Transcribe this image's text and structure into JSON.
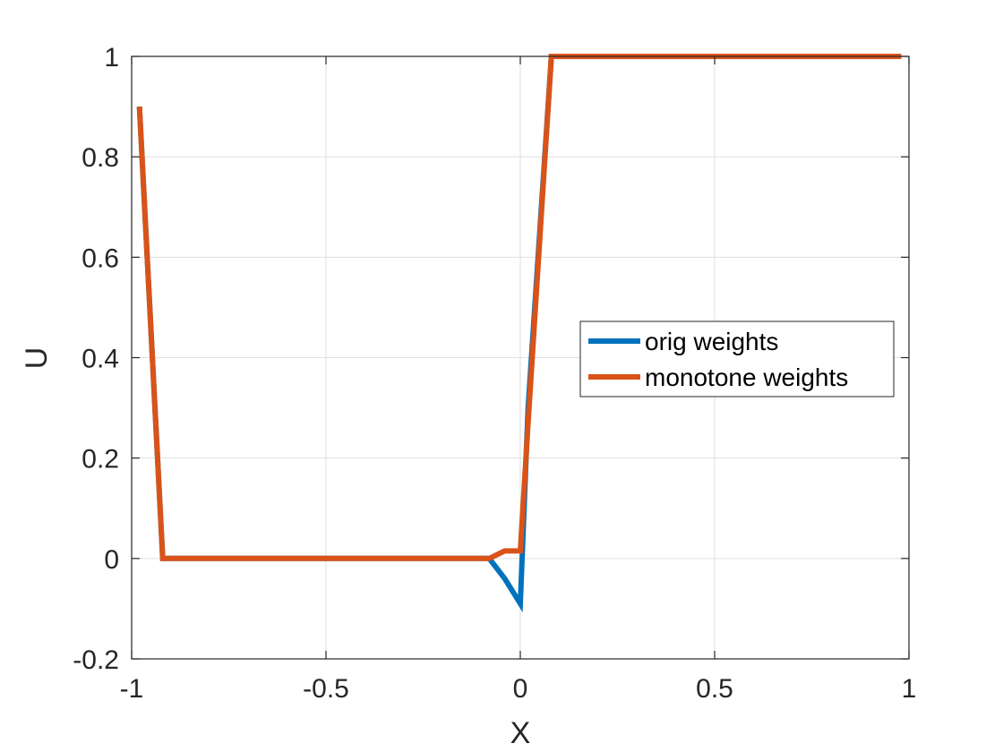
{
  "chart_data": {
    "type": "line",
    "title": "",
    "xlabel": "X",
    "ylabel": "U",
    "xlim": [
      -1,
      1
    ],
    "ylim": [
      -0.2,
      1
    ],
    "xticks": [
      -1,
      -0.5,
      0,
      0.5,
      1
    ],
    "xtick_labels": [
      "-1",
      "-0.5",
      "0",
      "0.5",
      "1"
    ],
    "yticks": [
      -0.2,
      0,
      0.2,
      0.4,
      0.6,
      0.8,
      1
    ],
    "ytick_labels": [
      "-0.2",
      "0",
      "0.2",
      "0.4",
      "0.6",
      "0.8",
      "1"
    ],
    "grid": true,
    "legend_position": "right",
    "series": [
      {
        "name": "orig weights",
        "color": "#0072BD",
        "points": [
          [
            -0.98,
            0.9
          ],
          [
            -0.92,
            0.0
          ],
          [
            -0.08,
            0.0
          ],
          [
            -0.04,
            -0.04
          ],
          [
            0.0,
            -0.09
          ],
          [
            0.02,
            0.3
          ],
          [
            0.08,
            1.0
          ],
          [
            0.98,
            1.0
          ]
        ]
      },
      {
        "name": "monotone weights",
        "color": "#D95319",
        "points": [
          [
            -0.98,
            0.9
          ],
          [
            -0.92,
            0.0
          ],
          [
            -0.08,
            0.0
          ],
          [
            -0.04,
            0.015
          ],
          [
            0.0,
            0.015
          ],
          [
            0.02,
            0.27
          ],
          [
            0.08,
            1.0
          ],
          [
            0.98,
            1.0
          ]
        ]
      }
    ]
  }
}
